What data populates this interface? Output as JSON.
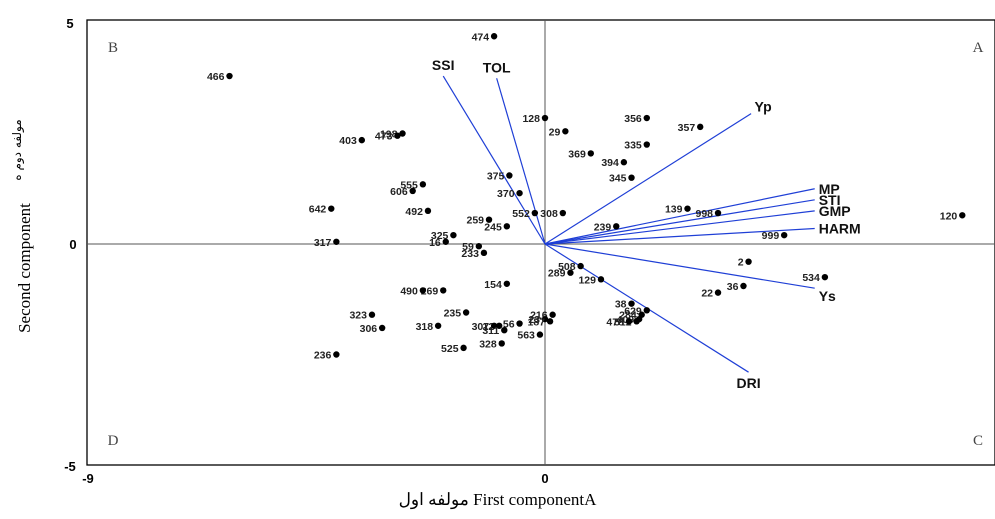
{
  "chart_data": {
    "type": "scatter",
    "xlabel": "مولفه اول  First componentA",
    "ylabel": "Second component",
    "ylabel_fa": "مولفه دوم  ه",
    "xlim": [
      -9,
      9
    ],
    "ylim": [
      -5,
      5
    ],
    "x_tick_labels": [
      "-9",
      "0"
    ],
    "y_tick_labels": [
      "5",
      "0",
      "-5"
    ],
    "quadrant_labels": [
      "A",
      "B",
      "C",
      "D"
    ],
    "points": [
      {
        "label": "474",
        "x": -1.0,
        "y": 4.7
      },
      {
        "label": "466",
        "x": -6.2,
        "y": 3.8
      },
      {
        "label": "198",
        "x": -2.8,
        "y": 2.5
      },
      {
        "label": "403",
        "x": -3.6,
        "y": 2.35
      },
      {
        "label": "473",
        "x": -2.9,
        "y": 2.45
      },
      {
        "label": "128",
        "x": 0.0,
        "y": 2.85
      },
      {
        "label": "29",
        "x": 0.4,
        "y": 2.55
      },
      {
        "label": "356",
        "x": 2.0,
        "y": 2.85
      },
      {
        "label": "357",
        "x": 3.05,
        "y": 2.65
      },
      {
        "label": "335",
        "x": 2.0,
        "y": 2.25
      },
      {
        "label": "369",
        "x": 0.9,
        "y": 2.05
      },
      {
        "label": "394",
        "x": 1.55,
        "y": 1.85
      },
      {
        "label": "345",
        "x": 1.7,
        "y": 1.5
      },
      {
        "label": "375",
        "x": -0.7,
        "y": 1.55
      },
      {
        "label": "555",
        "x": -2.4,
        "y": 1.35
      },
      {
        "label": "606",
        "x": -2.6,
        "y": 1.2
      },
      {
        "label": "370",
        "x": -0.5,
        "y": 1.15
      },
      {
        "label": "308",
        "x": 0.35,
        "y": 0.7
      },
      {
        "label": "139",
        "x": 2.8,
        "y": 0.8
      },
      {
        "label": "998",
        "x": 3.4,
        "y": 0.7
      },
      {
        "label": "120",
        "x": 8.2,
        "y": 0.65
      },
      {
        "label": "642",
        "x": -4.2,
        "y": 0.8
      },
      {
        "label": "492",
        "x": -2.3,
        "y": 0.75
      },
      {
        "label": "552",
        "x": -0.2,
        "y": 0.7
      },
      {
        "label": "259",
        "x": -1.1,
        "y": 0.55
      },
      {
        "label": "245",
        "x": -0.75,
        "y": 0.4
      },
      {
        "label": "239",
        "x": 1.4,
        "y": 0.4
      },
      {
        "label": "325",
        "x": -1.8,
        "y": 0.2
      },
      {
        "label": "999",
        "x": 4.7,
        "y": 0.2
      },
      {
        "label": "317",
        "x": -4.1,
        "y": 0.05
      },
      {
        "label": "16",
        "x": -1.95,
        "y": 0.05
      },
      {
        "label": "59",
        "x": -1.3,
        "y": -0.05
      },
      {
        "label": "233",
        "x": -1.2,
        "y": -0.2
      },
      {
        "label": "508",
        "x": 0.7,
        "y": -0.5
      },
      {
        "label": "289",
        "x": 0.5,
        "y": -0.65
      },
      {
        "label": "2",
        "x": 4.0,
        "y": -0.4
      },
      {
        "label": "129",
        "x": 1.1,
        "y": -0.8
      },
      {
        "label": "534",
        "x": 5.5,
        "y": -0.75
      },
      {
        "label": "154",
        "x": -0.75,
        "y": -0.9
      },
      {
        "label": "36",
        "x": 3.9,
        "y": -0.95
      },
      {
        "label": "22",
        "x": 3.4,
        "y": -1.1
      },
      {
        "label": "269",
        "x": -2.0,
        "y": -1.05
      },
      {
        "label": "490",
        "x": -2.4,
        "y": -1.05
      },
      {
        "label": "38",
        "x": 1.7,
        "y": -1.35
      },
      {
        "label": "629",
        "x": 2.0,
        "y": -1.5
      },
      {
        "label": "235",
        "x": -1.55,
        "y": -1.55
      },
      {
        "label": "323",
        "x": -3.4,
        "y": -1.6
      },
      {
        "label": "216",
        "x": 0.15,
        "y": -1.6
      },
      {
        "label": "23",
        "x": 0.0,
        "y": -1.7
      },
      {
        "label": "284",
        "x": 1.9,
        "y": -1.6
      },
      {
        "label": "409",
        "x": 1.85,
        "y": -1.7
      },
      {
        "label": "512",
        "x": 1.8,
        "y": -1.75
      },
      {
        "label": "56",
        "x": -0.5,
        "y": -1.8
      },
      {
        "label": "12",
        "x": -0.9,
        "y": -1.85
      },
      {
        "label": "307",
        "x": -1.0,
        "y": -1.85
      },
      {
        "label": "318",
        "x": -2.1,
        "y": -1.85
      },
      {
        "label": "306",
        "x": -3.2,
        "y": -1.9
      },
      {
        "label": "311",
        "x": -0.8,
        "y": -1.95
      },
      {
        "label": "187",
        "x": 0.1,
        "y": -1.75
      },
      {
        "label": "478",
        "x": 1.65,
        "y": -1.75
      },
      {
        "label": "563",
        "x": -0.1,
        "y": -2.05
      },
      {
        "label": "328",
        "x": -0.85,
        "y": -2.25
      },
      {
        "label": "525",
        "x": -1.6,
        "y": -2.35
      },
      {
        "label": "236",
        "x": -4.1,
        "y": -2.5
      }
    ],
    "vectors": [
      {
        "label": "SSI",
        "x": -2.0,
        "y": 3.8
      },
      {
        "label": "TOL",
        "x": -0.95,
        "y": 3.75
      },
      {
        "label": "Yp",
        "x": 4.05,
        "y": 2.95
      },
      {
        "label": "MP",
        "x": 5.3,
        "y": 1.25
      },
      {
        "label": "STI",
        "x": 5.3,
        "y": 1.0
      },
      {
        "label": "GMP",
        "x": 5.3,
        "y": 0.75
      },
      {
        "label": "HARM",
        "x": 5.3,
        "y": 0.35
      },
      {
        "label": "Ys",
        "x": 5.3,
        "y": -1.0
      },
      {
        "label": "DRI",
        "x": 4.0,
        "y": -2.9
      }
    ]
  }
}
